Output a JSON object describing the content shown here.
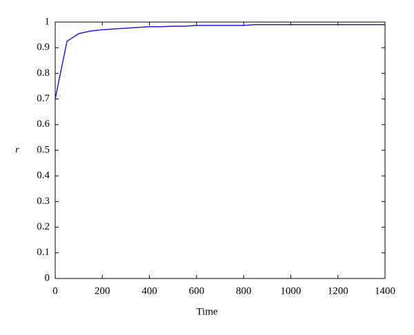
{
  "chart_data": {
    "type": "line",
    "x_label": "Time",
    "y_label": "r",
    "x": [
      0,
      50,
      100,
      150,
      200,
      300,
      400,
      450,
      500,
      550,
      600,
      800,
      850,
      1400
    ],
    "series": [
      {
        "color": "#1f1fcf",
        "values": [
          0.7,
          0.925,
          0.955,
          0.965,
          0.97,
          0.976,
          0.982,
          0.982,
          0.984,
          0.984,
          0.987,
          0.987,
          0.99,
          0.99
        ]
      }
    ],
    "xlim": [
      0,
      1400
    ],
    "xticks": [
      0,
      200,
      400,
      600,
      800,
      1000,
      1200,
      1400
    ],
    "ylim": [
      0,
      1
    ],
    "yticks": [
      0,
      0.1,
      0.2,
      0.3,
      0.4,
      0.5,
      0.6,
      0.7,
      0.8,
      0.9,
      1
    ],
    "grid": false
  }
}
